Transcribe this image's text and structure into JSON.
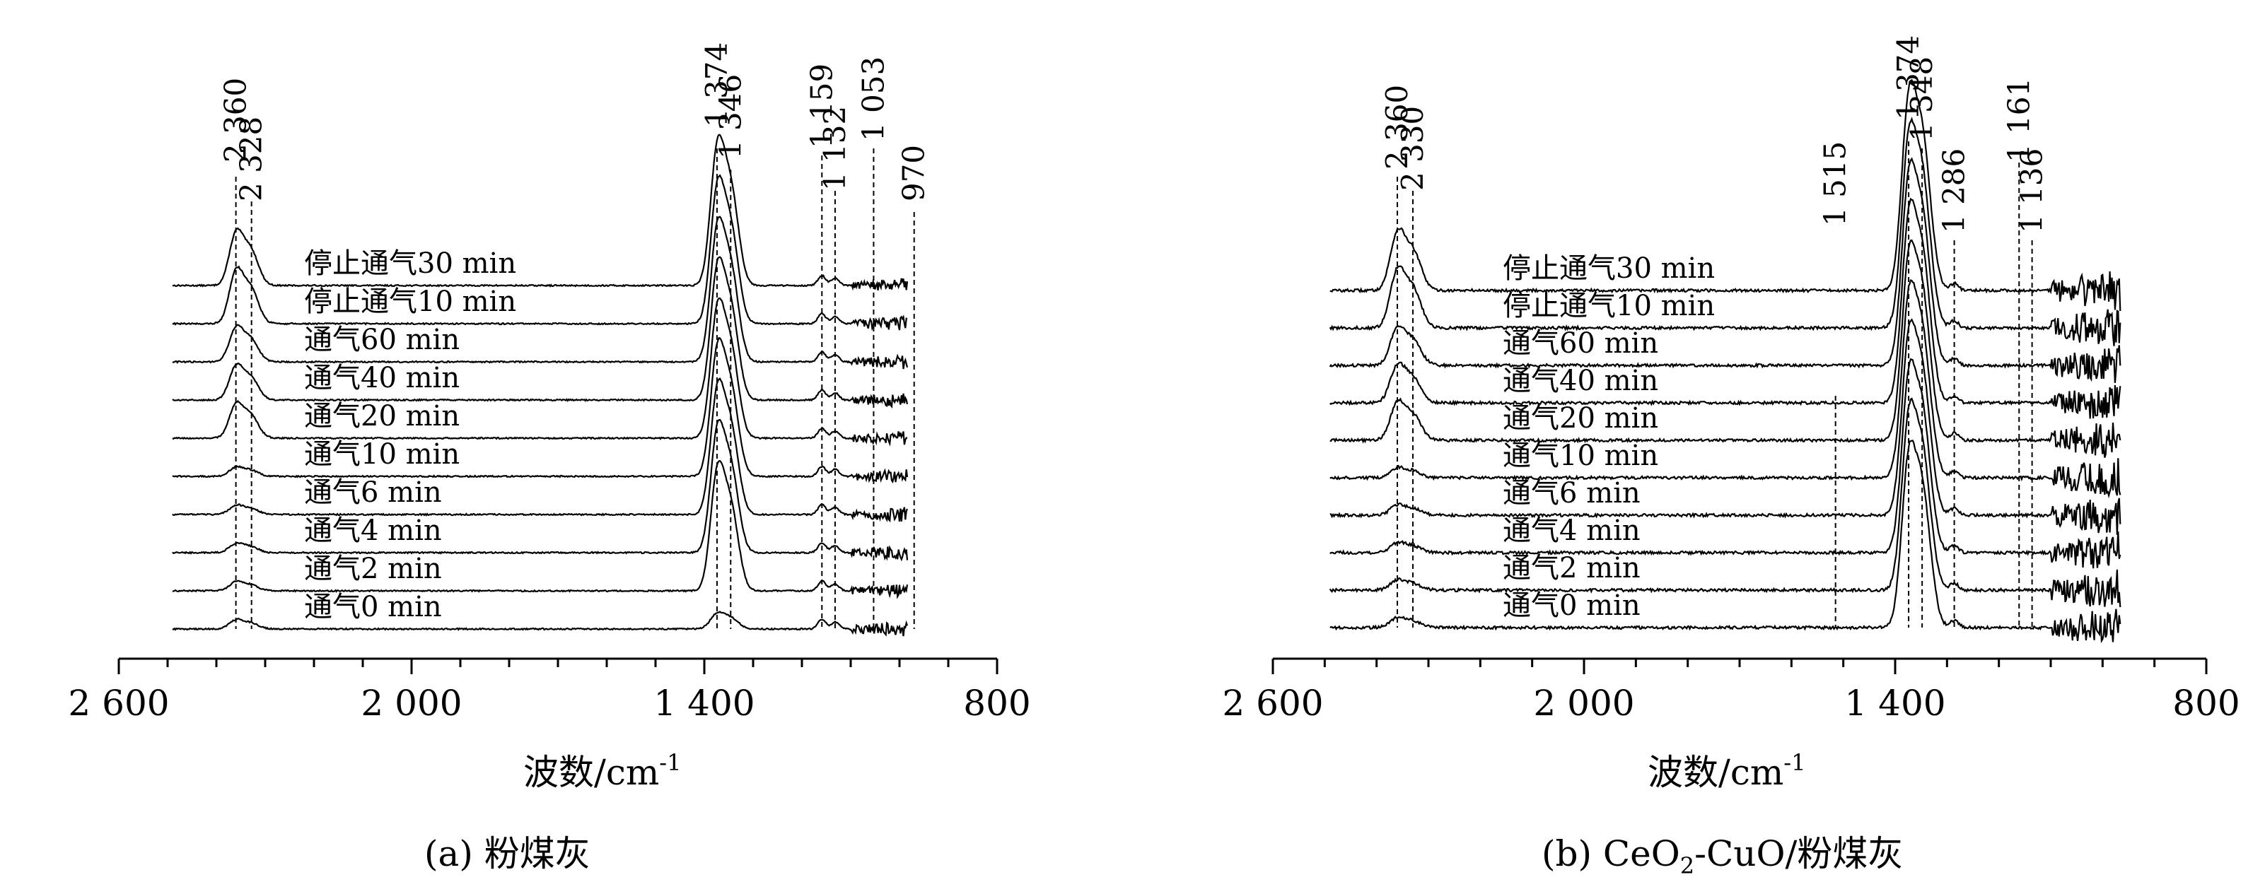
{
  "chart_data": [
    {
      "type": "line",
      "panel_label": "(a) 粉煤灰",
      "xlabel": "波数/cm⁻¹",
      "xlabel_base": "波数/cm",
      "xlabel_sup": "-1",
      "xlim": [
        2600,
        800
      ],
      "x_reversed": true,
      "x_ticks": [
        2600,
        2000,
        1400,
        800
      ],
      "x_tick_labels": [
        "2 600",
        "2 000",
        "1 400",
        "800"
      ],
      "y_axis": "hidden (offset stacked spectra)",
      "series": [
        {
          "name": "停止通气30 min"
        },
        {
          "name": "停止通气10 min"
        },
        {
          "name": "通气60 min"
        },
        {
          "name": "通气40 min"
        },
        {
          "name": "通气20 min"
        },
        {
          "name": "通气10 min"
        },
        {
          "name": "通气6 min"
        },
        {
          "name": "通气4 min"
        },
        {
          "name": "通气2 min"
        },
        {
          "name": "通气0 min"
        }
      ],
      "peak_markers": [
        {
          "x": 2360,
          "label": "2 360"
        },
        {
          "x": 2328,
          "label": "2 328"
        },
        {
          "x": 1374,
          "label": "1 374"
        },
        {
          "x": 1346,
          "label": "1 346"
        },
        {
          "x": 1159,
          "label": "1 159"
        },
        {
          "x": 1132,
          "label": "1 132"
        },
        {
          "x": 1053,
          "label": "1 053"
        },
        {
          "x": 970,
          "label": "970"
        }
      ]
    },
    {
      "type": "line",
      "panel_label": "(b) CeO2-CuO/粉煤灰",
      "panel_label_parts": [
        "(b) CeO",
        "2",
        "-CuO/粉煤灰"
      ],
      "xlabel": "波数/cm⁻¹",
      "xlabel_base": "波数/cm",
      "xlabel_sup": "-1",
      "xlim": [
        2600,
        800
      ],
      "x_reversed": true,
      "x_ticks": [
        2600,
        2000,
        1400,
        800
      ],
      "x_tick_labels": [
        "2 600",
        "2 000",
        "1 400",
        "800"
      ],
      "y_axis": "hidden (offset stacked spectra)",
      "series": [
        {
          "name": "停止通气30 min"
        },
        {
          "name": "停止通气10 min"
        },
        {
          "name": "通气60 min"
        },
        {
          "name": "通气40 min"
        },
        {
          "name": "通气20 min"
        },
        {
          "name": "通气10 min"
        },
        {
          "name": "通气6 min"
        },
        {
          "name": "通气4 min"
        },
        {
          "name": "通气2 min"
        },
        {
          "name": "通气0 min"
        }
      ],
      "peak_markers": [
        {
          "x": 2360,
          "label": "2 360"
        },
        {
          "x": 2330,
          "label": "2 330"
        },
        {
          "x": 1515,
          "label": "1 515"
        },
        {
          "x": 1374,
          "label": "1 374"
        },
        {
          "x": 1348,
          "label": "1 348"
        },
        {
          "x": 1286,
          "label": "1 286"
        },
        {
          "x": 1161,
          "label": "1 161"
        },
        {
          "x": 1136,
          "label": "1 136"
        }
      ]
    }
  ]
}
